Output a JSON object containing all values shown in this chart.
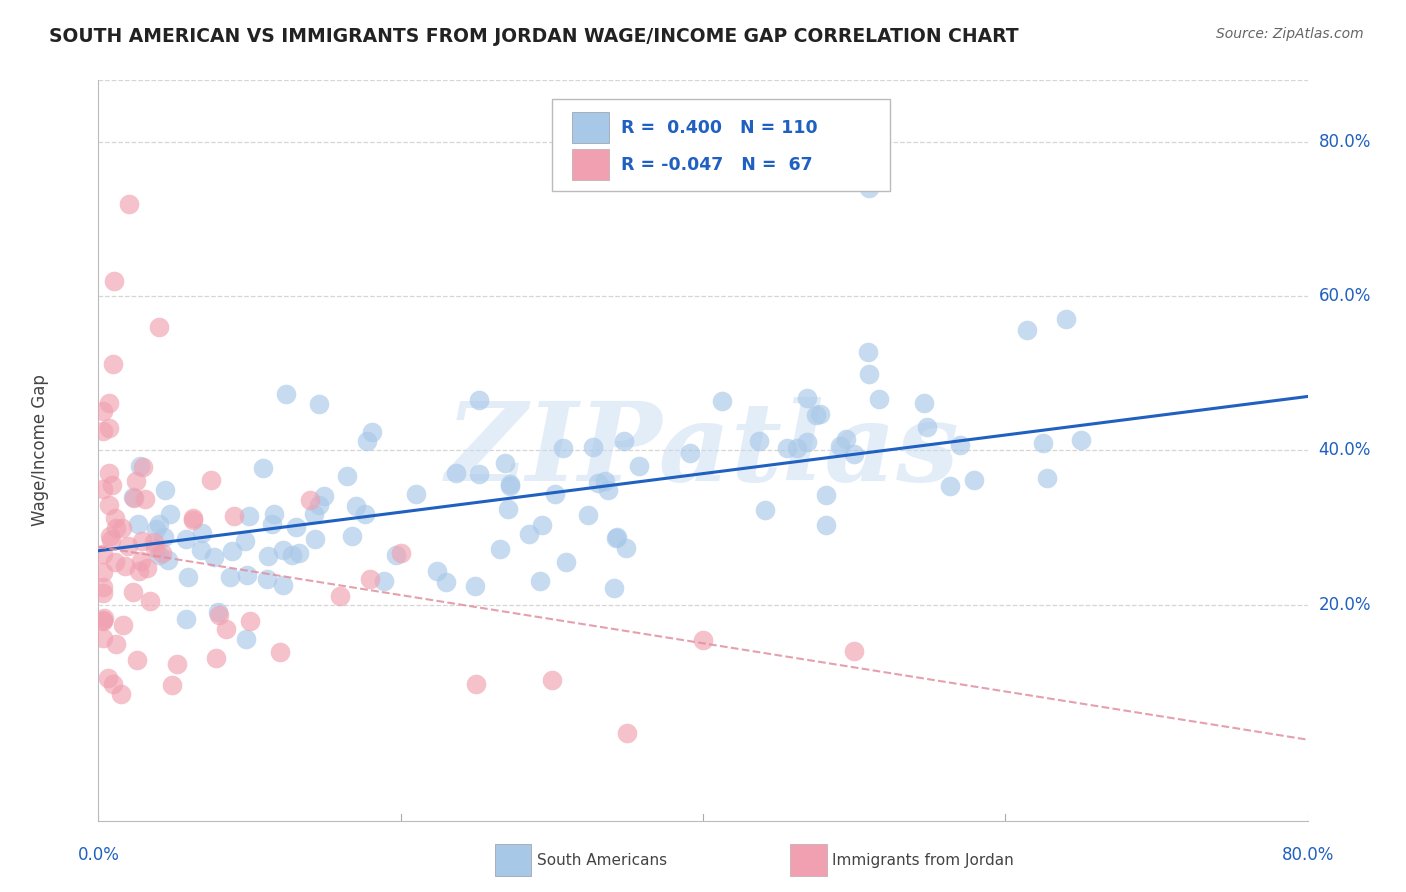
{
  "title": "SOUTH AMERICAN VS IMMIGRANTS FROM JORDAN WAGE/INCOME GAP CORRELATION CHART",
  "source": "Source: ZipAtlas.com",
  "ylabel": "Wage/Income Gap",
  "watermark": "ZIPatlas",
  "blue_R": 0.4,
  "blue_N": 110,
  "pink_R": -0.047,
  "pink_N": 67,
  "blue_color": "#A8C8E8",
  "pink_color": "#F0A0B0",
  "blue_line_color": "#2060C0",
  "pink_line_color": "#E090A0",
  "background_color": "#FFFFFF",
  "grid_color": "#CCCCCC",
  "ytick_labels": [
    "20.0%",
    "40.0%",
    "60.0%",
    "80.0%"
  ],
  "ytick_values": [
    0.2,
    0.4,
    0.6,
    0.8
  ],
  "xlim": [
    0.0,
    0.8
  ],
  "ylim": [
    -0.08,
    0.88
  ],
  "blue_line_x": [
    0.0,
    0.8
  ],
  "blue_line_y": [
    0.27,
    0.47
  ],
  "pink_line_x": [
    0.0,
    0.8
  ],
  "pink_line_y": [
    0.275,
    0.025
  ],
  "title_color": "#222222",
  "source_color": "#666666",
  "axis_label_color": "#2060C0",
  "legend_R_color": "#2060C0",
  "watermark_color": "#C8DCF0",
  "legend_label_color": "#444444"
}
